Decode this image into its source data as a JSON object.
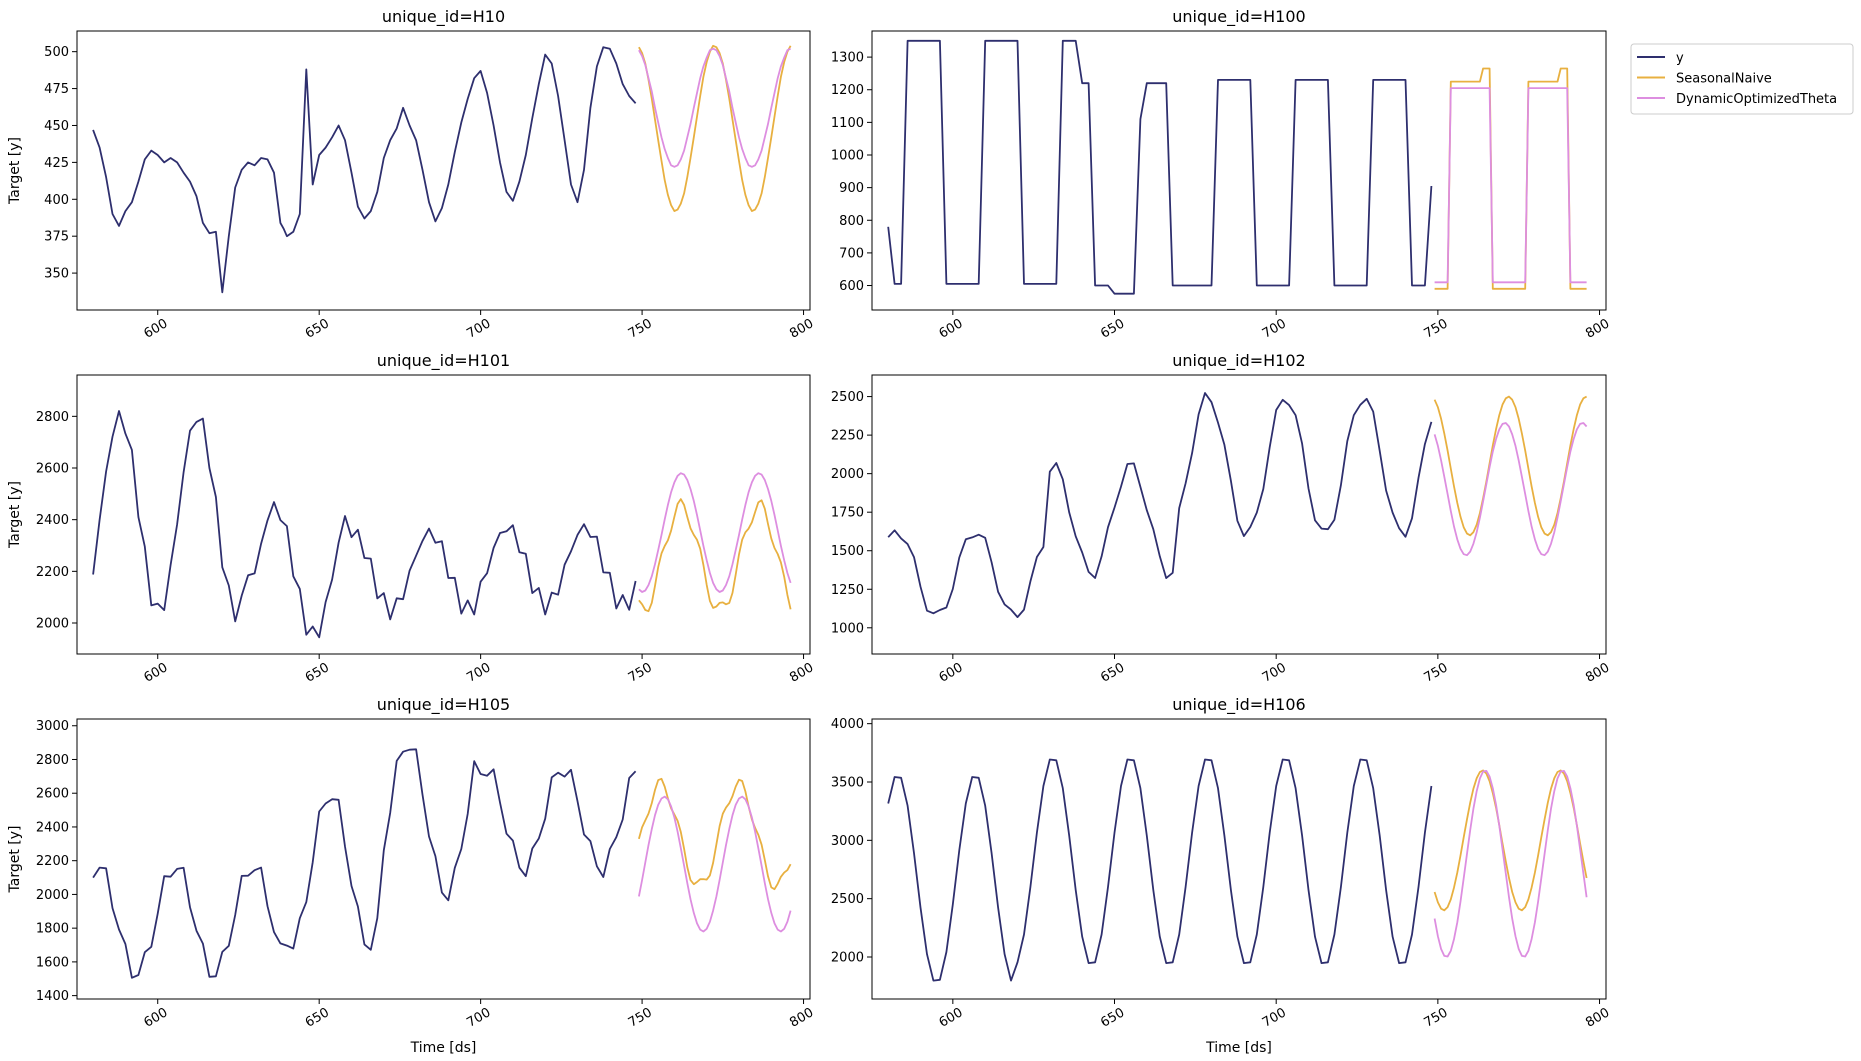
{
  "colors": {
    "y": "#2e2f6e",
    "SeasonalNaive": "#e8b040",
    "DynamicOptimizedTheta": "#dd8ee0"
  },
  "legend": {
    "items": [
      "y",
      "SeasonalNaive",
      "DynamicOptimizedTheta"
    ]
  },
  "chart_data": [
    {
      "type": "line",
      "title": "unique_id=H10",
      "xlabel": "",
      "ylabel": "Target [y]",
      "xlim": [
        575,
        802
      ],
      "ylim": [
        325,
        514
      ],
      "xticks": [
        600,
        650,
        700,
        750,
        800
      ],
      "yticks": [
        350,
        375,
        400,
        425,
        450,
        475,
        500
      ],
      "series": [
        {
          "name": "y",
          "x": [
            580,
            582,
            584,
            586,
            588,
            590,
            592,
            594,
            596,
            598,
            600,
            602,
            604,
            606,
            608,
            610,
            612,
            614,
            616,
            618,
            620,
            622,
            624,
            626,
            628,
            630,
            632,
            634,
            636,
            638,
            639,
            640,
            642,
            644,
            646,
            648,
            650,
            652,
            654,
            656,
            658,
            660,
            662,
            664,
            666,
            668,
            670,
            672,
            674,
            676,
            678,
            680,
            682,
            684,
            686,
            688,
            690,
            692,
            694,
            696,
            698,
            700,
            702,
            704,
            706,
            708,
            710,
            712,
            714,
            716,
            718,
            720,
            722,
            724,
            726,
            728,
            730,
            732,
            734,
            736,
            738,
            740,
            742,
            744,
            746,
            748
          ],
          "y": [
            447,
            435,
            415,
            390,
            382,
            392,
            398,
            412,
            427,
            433,
            430,
            425,
            428,
            425,
            418,
            412,
            402,
            384,
            377,
            378,
            337,
            375,
            408,
            420,
            425,
            423,
            428,
            427,
            418,
            384,
            380,
            375,
            378,
            390,
            488,
            410,
            430,
            435,
            442,
            450,
            440,
            418,
            395,
            387,
            392,
            405,
            428,
            440,
            448,
            462,
            450,
            440,
            420,
            398,
            385,
            394,
            410,
            432,
            452,
            468,
            482,
            487,
            472,
            450,
            425,
            405,
            399,
            412,
            430,
            455,
            478,
            498,
            492,
            470,
            440,
            410,
            398,
            420,
            462,
            490,
            503,
            502,
            492,
            478,
            470,
            465
          ],
          "_note": "approx"
        }
      ]
    }
  ]
}
